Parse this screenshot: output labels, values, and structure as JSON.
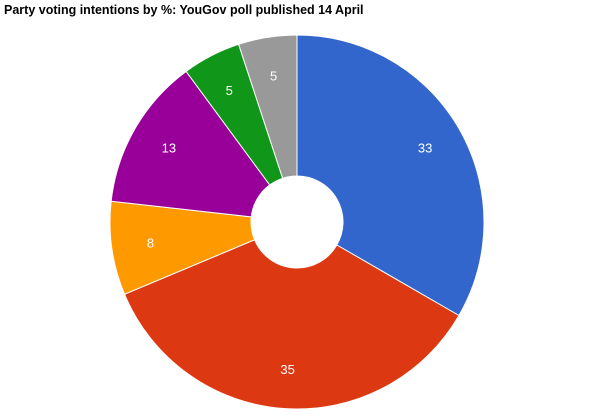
{
  "chart_data": {
    "type": "pie",
    "title": "Party voting intentions by %: YouGov poll published 14 April",
    "donut": true,
    "start_angle_deg": 0,
    "direction": "clockwise",
    "legend": "none",
    "slices": [
      {
        "value": 33,
        "label": "33",
        "color": "#3366cc"
      },
      {
        "value": 35,
        "label": "35",
        "color": "#dc3912"
      },
      {
        "value": 8,
        "label": "8",
        "color": "#ff9900"
      },
      {
        "value": 13,
        "label": "13",
        "color": "#990099"
      },
      {
        "value": 5,
        "label": "5",
        "color": "#109618"
      },
      {
        "value": 5,
        "label": "5",
        "color": "#999999"
      }
    ]
  }
}
